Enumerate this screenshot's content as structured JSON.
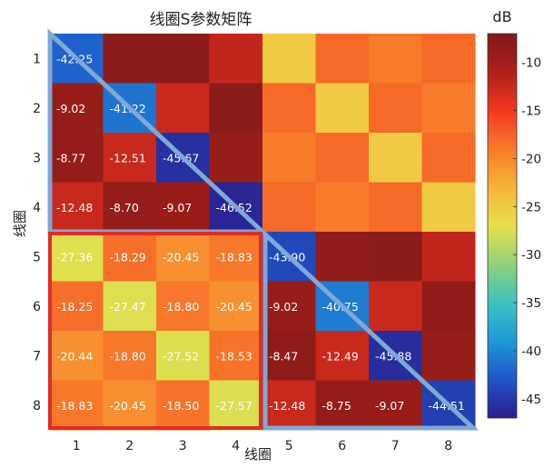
{
  "chart_data": {
    "type": "heatmap",
    "title": "线圈S参数矩阵",
    "xlabel": "线圈",
    "ylabel": "线圈",
    "x_categories": [
      "1",
      "2",
      "3",
      "4",
      "5",
      "6",
      "7",
      "8"
    ],
    "y_categories": [
      "1",
      "2",
      "3",
      "4",
      "5",
      "6",
      "7",
      "8"
    ],
    "colorbar": {
      "label": "dB",
      "range": [
        -47,
        -7
      ],
      "ticks": [
        "-10",
        "-15",
        "-20",
        "-25",
        "-30",
        "-35",
        "-40",
        "-45"
      ],
      "tick_values": [
        -10,
        -15,
        -20,
        -25,
        -30,
        -35,
        -40,
        -45
      ],
      "colormap": [
        "#2a1e8c",
        "#1f55c8",
        "#1e9ad8",
        "#3cc2c0",
        "#8fd279",
        "#e8e04a",
        "#f7b43a",
        "#f77b2a",
        "#f33822",
        "#b0201a",
        "#7e1a18"
      ]
    },
    "values": [
      [
        -42.25,
        -8.0,
        -8.0,
        -12.0,
        -25.0,
        -18.0,
        -19.0,
        -18.0
      ],
      [
        -9.02,
        -41.22,
        -12.5,
        -8.0,
        -18.0,
        -25.0,
        -18.0,
        -19.0
      ],
      [
        -8.77,
        -12.51,
        -45.67,
        -9.0,
        -19.0,
        -18.0,
        -25.0,
        -18.0
      ],
      [
        -12.48,
        -8.7,
        -9.07,
        -46.52,
        -18.0,
        -19.0,
        -18.0,
        -25.0
      ],
      [
        -27.36,
        -18.29,
        -20.45,
        -18.83,
        -43.9,
        -8.5,
        -8.0,
        -12.0
      ],
      [
        -18.25,
        -27.47,
        -18.8,
        -20.45,
        -9.02,
        -40.75,
        -12.5,
        -8.5
      ],
      [
        -20.44,
        -18.8,
        -27.52,
        -18.53,
        -8.47,
        -12.49,
        -45.88,
        -9.0
      ],
      [
        -18.83,
        -20.45,
        -18.5,
        -27.57,
        -12.48,
        -8.75,
        -9.07,
        -44.51
      ]
    ],
    "labels": [
      [
        "-42.25",
        "",
        "",
        "",
        "",
        "",
        "",
        ""
      ],
      [
        "-9.02",
        "-41.22",
        "",
        "",
        "",
        "",
        "",
        ""
      ],
      [
        "-8.77",
        "-12.51",
        "-45.67",
        "",
        "",
        "",
        "",
        ""
      ],
      [
        "-12.48",
        "-8.70",
        "-9.07",
        "-46.52",
        "",
        "",
        "",
        ""
      ],
      [
        "-27.36",
        "-18.29",
        "-20.45",
        "-18.83",
        "-43.90",
        "",
        "",
        ""
      ],
      [
        "-18.25",
        "-27.47",
        "-18.80",
        "-20.45",
        "-9.02",
        "-40.75",
        "",
        ""
      ],
      [
        "-20.44",
        "-18.80",
        "-27.52",
        "-18.53",
        "-8.47",
        "-12.49",
        "-45.88",
        ""
      ],
      [
        "-18.83",
        "-20.45",
        "-18.50",
        "-27.57",
        "-12.48",
        "-8.75",
        "-9.07",
        "-44.51"
      ]
    ],
    "grid": false,
    "annotations": {
      "highlight_box_color": "#e32b24",
      "triangle_color": "#7fa8d6"
    }
  }
}
